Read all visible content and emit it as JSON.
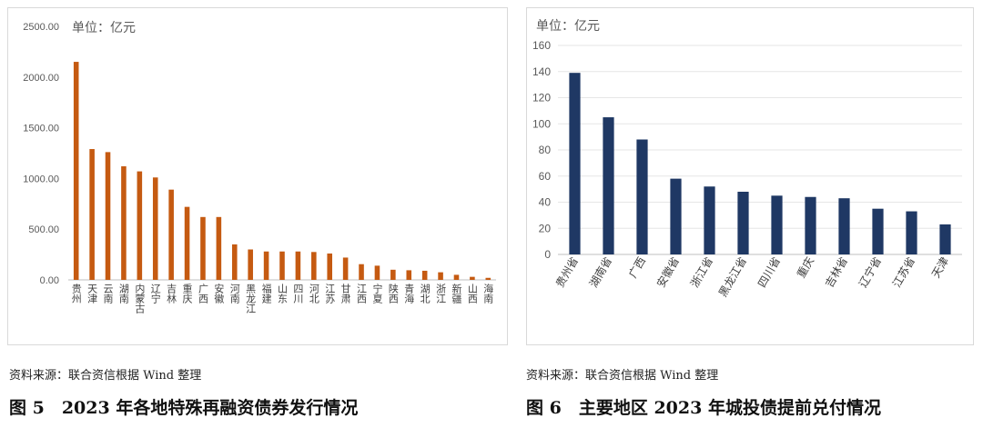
{
  "chart_data": [
    {
      "type": "bar",
      "title": "2023年各地特殊再融资债券发行情况",
      "unit_label": "单位：亿元",
      "ylabel": "亿元",
      "ylim": [
        0,
        2500
      ],
      "yticks": [
        "2500.00",
        "2000.00",
        "1500.00",
        "1000.00",
        "500.00",
        "0.00"
      ],
      "bar_color": "#C55A11",
      "categories": [
        "贵州",
        "天津",
        "云南",
        "湖南",
        "内蒙古",
        "辽宁",
        "吉林",
        "重庆",
        "广西",
        "安徽",
        "河南",
        "黑龙江",
        "福建",
        "山东",
        "四川",
        "河北",
        "江苏",
        "甘肃",
        "江西",
        "宁夏",
        "陕西",
        "青海",
        "湖北",
        "浙江",
        "新疆",
        "山西",
        "海南"
      ],
      "values": [
        2150,
        1290,
        1260,
        1120,
        1070,
        1010,
        890,
        720,
        620,
        620,
        350,
        300,
        280,
        280,
        280,
        275,
        260,
        220,
        155,
        140,
        100,
        95,
        90,
        75,
        50,
        30,
        20
      ]
    },
    {
      "type": "bar",
      "title": "主要地区2023年城投债提前兑付情况",
      "unit_label": "单位：亿元",
      "ylabel": "亿元",
      "ylim": [
        0,
        160
      ],
      "yticks": [
        "160",
        "140",
        "120",
        "100",
        "80",
        "60",
        "40",
        "20",
        "0"
      ],
      "bar_color": "#1F3864",
      "categories": [
        "贵州省",
        "湖南省",
        "广西",
        "安徽省",
        "浙江省",
        "黑龙江省",
        "四川省",
        "重庆",
        "吉林省",
        "辽宁省",
        "江苏省",
        "天津"
      ],
      "values": [
        139,
        105,
        88,
        58,
        52,
        48,
        45,
        44,
        43,
        35,
        33,
        23
      ]
    }
  ],
  "captions": {
    "fig5_source": "资料来源：联合资信根据 Wind 整理",
    "fig5_title": "图 5　2023 年各地特殊再融资债券发行情况",
    "fig6_source": "资料来源：联合资信根据 Wind 整理",
    "fig6_title": "图 6　主要地区 2023 年城投债提前兑付情况"
  }
}
